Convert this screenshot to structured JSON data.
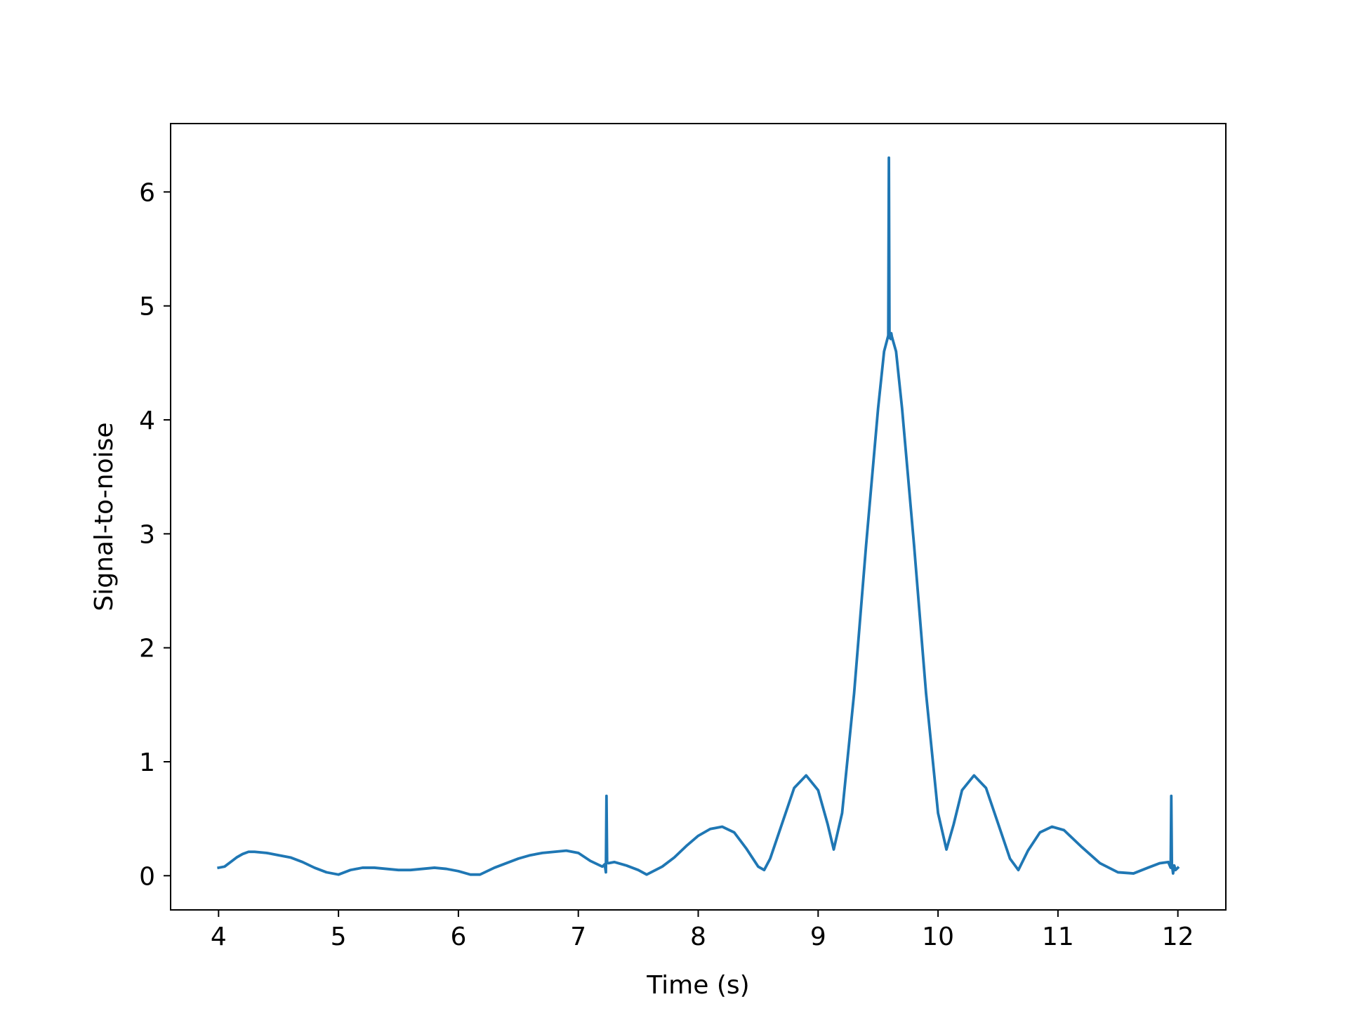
{
  "chart_data": {
    "type": "line",
    "title": "",
    "xlabel": "Time (s)",
    "ylabel": "Signal-to-noise",
    "xlim": [
      3.6,
      12.4
    ],
    "ylim": [
      -0.3,
      6.6
    ],
    "xticks": [
      4,
      5,
      6,
      7,
      8,
      9,
      10,
      11,
      12
    ],
    "xtick_labels": [
      "4",
      "5",
      "6",
      "7",
      "8",
      "9",
      "10",
      "11",
      "12"
    ],
    "yticks": [
      0,
      1,
      2,
      3,
      4,
      5,
      6
    ],
    "ytick_labels": [
      "0",
      "1",
      "2",
      "3",
      "4",
      "5",
      "6"
    ],
    "grid": false,
    "legend": "none",
    "series": [
      {
        "color": "#1f77b4",
        "x": [
          4.0,
          4.05,
          4.1,
          4.15,
          4.2,
          4.25,
          4.3,
          4.4,
          4.5,
          4.6,
          4.7,
          4.8,
          4.9,
          5.0,
          5.1,
          5.2,
          5.3,
          5.4,
          5.5,
          5.6,
          5.7,
          5.8,
          5.9,
          6.0,
          6.1,
          6.18,
          6.3,
          6.4,
          6.5,
          6.6,
          6.7,
          6.8,
          6.9,
          7.0,
          7.1,
          7.2,
          7.22,
          7.23,
          7.235,
          7.24,
          7.25,
          7.3,
          7.4,
          7.5,
          7.57,
          7.7,
          7.8,
          7.9,
          8.0,
          8.1,
          8.2,
          8.3,
          8.4,
          8.5,
          8.55,
          8.6,
          8.7,
          8.8,
          8.9,
          9.0,
          9.08,
          9.13,
          9.2,
          9.3,
          9.4,
          9.5,
          9.55,
          9.585,
          9.59,
          9.595,
          9.6,
          9.605,
          9.61,
          9.615,
          9.65,
          9.7,
          9.8,
          9.9,
          10.0,
          10.07,
          10.13,
          10.2,
          10.3,
          10.4,
          10.5,
          10.6,
          10.67,
          10.75,
          10.85,
          10.95,
          11.05,
          11.2,
          11.35,
          11.5,
          11.63,
          11.75,
          11.85,
          11.92,
          11.94,
          11.945,
          11.95,
          11.96,
          11.97,
          11.98,
          12.0
        ],
        "y": [
          0.07,
          0.08,
          0.12,
          0.16,
          0.19,
          0.21,
          0.21,
          0.2,
          0.18,
          0.16,
          0.12,
          0.07,
          0.03,
          0.01,
          0.05,
          0.07,
          0.07,
          0.06,
          0.05,
          0.05,
          0.06,
          0.07,
          0.06,
          0.04,
          0.01,
          0.01,
          0.07,
          0.11,
          0.15,
          0.18,
          0.2,
          0.21,
          0.22,
          0.2,
          0.13,
          0.08,
          0.1,
          0.03,
          0.7,
          0.12,
          0.11,
          0.12,
          0.09,
          0.05,
          0.01,
          0.08,
          0.16,
          0.26,
          0.35,
          0.41,
          0.43,
          0.38,
          0.24,
          0.08,
          0.05,
          0.15,
          0.46,
          0.77,
          0.88,
          0.75,
          0.45,
          0.23,
          0.55,
          1.6,
          2.9,
          4.1,
          4.6,
          4.74,
          6.3,
          4.72,
          4.75,
          4.71,
          4.76,
          4.73,
          4.6,
          4.1,
          2.9,
          1.6,
          0.55,
          0.23,
          0.45,
          0.75,
          0.88,
          0.77,
          0.46,
          0.15,
          0.05,
          0.22,
          0.38,
          0.43,
          0.4,
          0.25,
          0.11,
          0.03,
          0.02,
          0.07,
          0.11,
          0.12,
          0.07,
          0.7,
          0.1,
          0.02,
          0.09,
          0.05,
          0.07
        ]
      }
    ]
  }
}
